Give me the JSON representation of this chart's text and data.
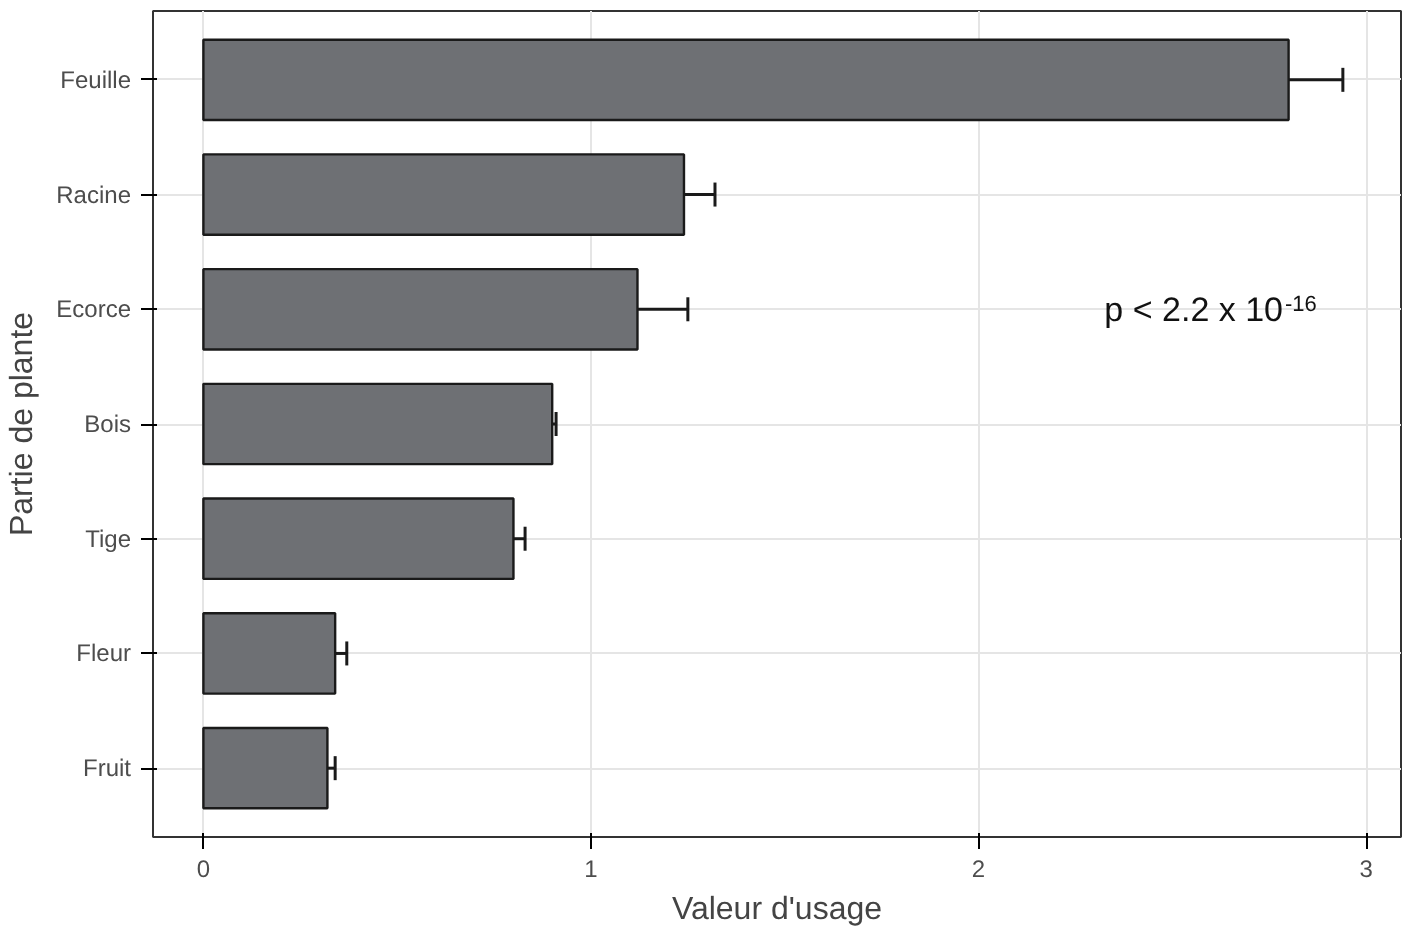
{
  "chart_data": {
    "type": "bar",
    "orientation": "horizontal",
    "xlabel": "Valeur d'usage",
    "ylabel": "Partie de plante",
    "categories": [
      "Feuille",
      "Racine",
      "Ecorce",
      "Bois",
      "Tige",
      "Fleur",
      "Fruit"
    ],
    "values": [
      2.8,
      1.24,
      1.12,
      0.9,
      0.8,
      0.34,
      0.32
    ],
    "errors": [
      0.14,
      0.08,
      0.13,
      0.01,
      0.03,
      0.03,
      0.02
    ],
    "color": "#6e7074",
    "xlim": [
      -0.13,
      3.09
    ],
    "xticks": [
      0,
      1,
      2,
      3
    ],
    "grid": true,
    "annotations": [
      "p < 2.2 x 10$^{-16}$"
    ]
  }
}
